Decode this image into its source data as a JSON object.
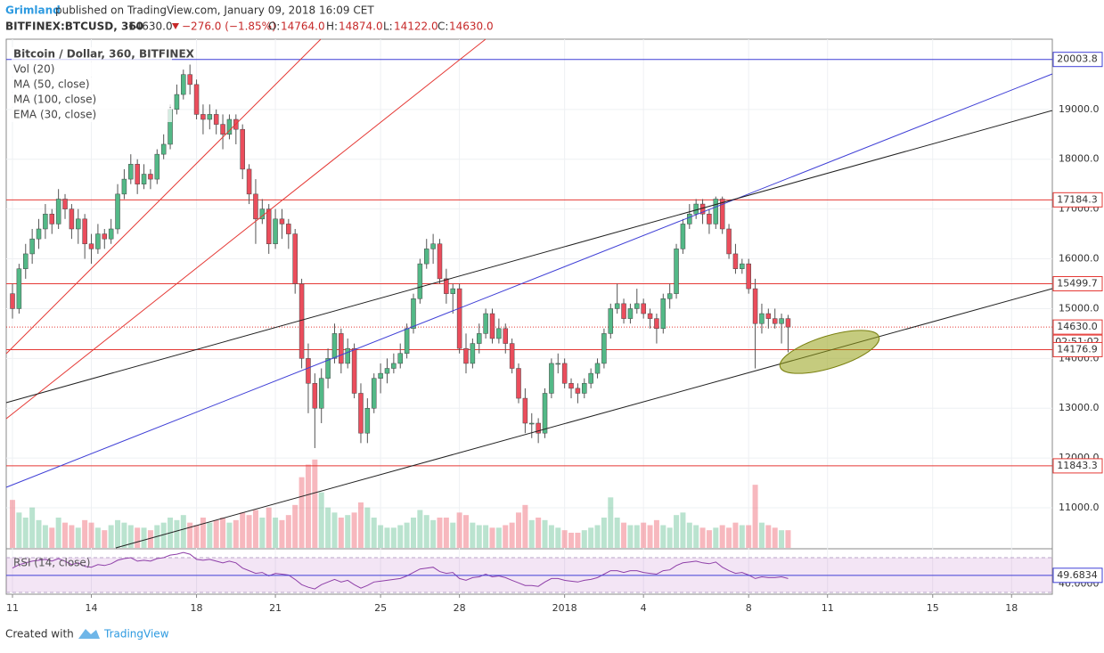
{
  "header": {
    "author": "Grimland",
    "published": "published on TradingView.com, January 09, 2018 16:09 CET",
    "symbol": "BITFINEX:BTCUSD, 360",
    "last": "14630.0",
    "change": "−276.0 (−1.85%)",
    "o_label": "O:",
    "o": "14764.0",
    "h_label": "H:",
    "h": "14874.0",
    "l_label": "L:",
    "l": "14122.0",
    "c_label": "C:",
    "c": "14630.0"
  },
  "legend": [
    "Bitcoin / Dollar, 360, BITFINEX",
    "Vol (20)",
    "MA (50, close)",
    "MA (100, close)",
    "EMA (30, close)"
  ],
  "footer": {
    "created": "Created with",
    "brand": "TradingView"
  },
  "chart_data": {
    "type": "candlestick",
    "up_color": "#53b987",
    "down_color": "#eb4d5c",
    "ylim": [
      10196,
      20410
    ],
    "yticks": [
      {
        "value": 11000,
        "label": "11000.0"
      },
      {
        "value": 12000,
        "label": "12000.0"
      },
      {
        "value": 13000,
        "label": "13000.0"
      },
      {
        "value": 14000,
        "label": "14000.0"
      },
      {
        "value": 15000,
        "label": "15000.0"
      },
      {
        "value": 16000,
        "label": "16000.0"
      },
      {
        "value": 17000,
        "label": "17000.0"
      },
      {
        "value": 18000,
        "label": "18000.0"
      },
      {
        "value": 19000,
        "label": "19000.0"
      }
    ],
    "xlim": [
      -0.95,
      158.2
    ],
    "xticks": [
      {
        "value": 0,
        "label": "11"
      },
      {
        "value": 12,
        "label": "14"
      },
      {
        "value": 28,
        "label": "18"
      },
      {
        "value": 40,
        "label": "21"
      },
      {
        "value": 56,
        "label": "25"
      },
      {
        "value": 68,
        "label": "28"
      },
      {
        "value": 84,
        "label": "2018"
      },
      {
        "value": 96,
        "label": "4"
      },
      {
        "value": 112,
        "label": "8"
      },
      {
        "value": 124,
        "label": "11"
      },
      {
        "value": 140,
        "label": "15"
      },
      {
        "value": 152,
        "label": "18"
      }
    ],
    "grid": true,
    "levels": [
      {
        "value": 20003.8,
        "color": "#3f3fd6"
      },
      {
        "value": 17184.3,
        "color": "#e53935"
      },
      {
        "value": 15499.7,
        "color": "#e53935"
      },
      {
        "value": 14630.0,
        "label": "14630.0",
        "color": "#e53935",
        "dotted": true,
        "countdown": "02:51:02"
      },
      {
        "value": 14176.9,
        "color": "#e53935"
      },
      {
        "value": 11843.3,
        "color": "#e53935"
      }
    ],
    "candles": [
      [
        15300,
        15500,
        14800,
        15000
      ],
      [
        15000,
        15900,
        14900,
        15800
      ],
      [
        15800,
        16300,
        15600,
        16100
      ],
      [
        16100,
        16600,
        15900,
        16400
      ],
      [
        16400,
        16800,
        16200,
        16600
      ],
      [
        16600,
        17100,
        16400,
        16900
      ],
      [
        16900,
        17000,
        16500,
        16700
      ],
      [
        16700,
        17400,
        16600,
        17200
      ],
      [
        17200,
        17300,
        16800,
        17000
      ],
      [
        17000,
        17100,
        16400,
        16600
      ],
      [
        16600,
        17000,
        16300,
        16800
      ],
      [
        16800,
        16900,
        16000,
        16300
      ],
      [
        16300,
        16500,
        15900,
        16200
      ],
      [
        16200,
        16700,
        16100,
        16500
      ],
      [
        16500,
        16600,
        16200,
        16400
      ],
      [
        16400,
        16800,
        16300,
        16600
      ],
      [
        16600,
        17500,
        16500,
        17300
      ],
      [
        17300,
        17800,
        17200,
        17600
      ],
      [
        17600,
        18100,
        17500,
        17900
      ],
      [
        17900,
        18000,
        17300,
        17500
      ],
      [
        17500,
        17900,
        17400,
        17700
      ],
      [
        17700,
        17800,
        17400,
        17600
      ],
      [
        17600,
        18200,
        17500,
        18100
      ],
      [
        18100,
        18500,
        18000,
        18300
      ],
      [
        18300,
        19100,
        18200,
        19000
      ],
      [
        19000,
        19500,
        18900,
        19300
      ],
      [
        19300,
        19800,
        19200,
        19700
      ],
      [
        19700,
        19900,
        19300,
        19500
      ],
      [
        19500,
        19600,
        18800,
        18900
      ],
      [
        18900,
        19100,
        18500,
        18800
      ],
      [
        18800,
        19100,
        18600,
        18900
      ],
      [
        18900,
        19000,
        18500,
        18700
      ],
      [
        18700,
        18900,
        18200,
        18500
      ],
      [
        18500,
        18900,
        18400,
        18800
      ],
      [
        18800,
        18900,
        18300,
        18600
      ],
      [
        18600,
        18700,
        17600,
        17800
      ],
      [
        17800,
        17900,
        17100,
        17300
      ],
      [
        17300,
        17600,
        16300,
        16800
      ],
      [
        16800,
        17200,
        16700,
        17000
      ],
      [
        17000,
        17100,
        16100,
        16300
      ],
      [
        16300,
        17000,
        16200,
        16800
      ],
      [
        16800,
        17000,
        16400,
        16700
      ],
      [
        16700,
        16800,
        16200,
        16500
      ],
      [
        16500,
        16600,
        15300,
        15500
      ],
      [
        15500,
        15600,
        13800,
        14000
      ],
      [
        14000,
        14300,
        12900,
        13500
      ],
      [
        13500,
        13700,
        12200,
        13000
      ],
      [
        13000,
        13800,
        12700,
        13600
      ],
      [
        13600,
        14200,
        13400,
        14000
      ],
      [
        14000,
        14700,
        13900,
        14500
      ],
      [
        14500,
        14600,
        13700,
        13900
      ],
      [
        13900,
        14400,
        13800,
        14200
      ],
      [
        14200,
        14300,
        13200,
        13300
      ],
      [
        13300,
        13500,
        12300,
        12500
      ],
      [
        12500,
        13200,
        12300,
        13000
      ],
      [
        13000,
        13700,
        12900,
        13600
      ],
      [
        13600,
        13900,
        13300,
        13700
      ],
      [
        13700,
        14000,
        13500,
        13800
      ],
      [
        13800,
        14100,
        13700,
        13900
      ],
      [
        13900,
        14300,
        13800,
        14100
      ],
      [
        14100,
        14700,
        14000,
        14600
      ],
      [
        14600,
        15300,
        14500,
        15200
      ],
      [
        15200,
        16000,
        15100,
        15900
      ],
      [
        15900,
        16400,
        15800,
        16200
      ],
      [
        16200,
        16500,
        15900,
        16300
      ],
      [
        16300,
        16400,
        15500,
        15600
      ],
      [
        15600,
        15800,
        15100,
        15300
      ],
      [
        15300,
        15500,
        14900,
        15400
      ],
      [
        15400,
        15500,
        14100,
        14200
      ],
      [
        14200,
        14500,
        13700,
        13900
      ],
      [
        13900,
        14400,
        13800,
        14300
      ],
      [
        14300,
        14700,
        14100,
        14500
      ],
      [
        14500,
        15000,
        14400,
        14900
      ],
      [
        14900,
        15000,
        14300,
        14400
      ],
      [
        14400,
        14800,
        14300,
        14600
      ],
      [
        14600,
        14700,
        14100,
        14300
      ],
      [
        14300,
        14400,
        13700,
        13800
      ],
      [
        13800,
        13900,
        13100,
        13200
      ],
      [
        13200,
        13400,
        12500,
        12700
      ],
      [
        12700,
        12900,
        12400,
        12700
      ],
      [
        12700,
        12800,
        12300,
        12500
      ],
      [
        12500,
        13400,
        12400,
        13300
      ],
      [
        13300,
        14000,
        13200,
        13900
      ],
      [
        13900,
        14100,
        13700,
        13900
      ],
      [
        13900,
        14000,
        13400,
        13500
      ],
      [
        13500,
        13600,
        13200,
        13400
      ],
      [
        13400,
        13500,
        13100,
        13300
      ],
      [
        13300,
        13600,
        13200,
        13500
      ],
      [
        13500,
        13800,
        13400,
        13700
      ],
      [
        13700,
        14000,
        13600,
        13900
      ],
      [
        13900,
        14600,
        13800,
        14500
      ],
      [
        14500,
        15100,
        14400,
        15000
      ],
      [
        15000,
        15500,
        14900,
        15100
      ],
      [
        15100,
        15200,
        14700,
        14800
      ],
      [
        14800,
        15100,
        14700,
        15000
      ],
      [
        15000,
        15400,
        14900,
        15100
      ],
      [
        15100,
        15200,
        14800,
        14900
      ],
      [
        14900,
        15000,
        14600,
        14800
      ],
      [
        14800,
        14900,
        14300,
        14600
      ],
      [
        14600,
        15300,
        14500,
        15200
      ],
      [
        15200,
        15500,
        15000,
        15300
      ],
      [
        15300,
        16300,
        15200,
        16200
      ],
      [
        16200,
        16800,
        16100,
        16700
      ],
      [
        16700,
        17100,
        16600,
        16900
      ],
      [
        16900,
        17200,
        16800,
        17100
      ],
      [
        17100,
        17200,
        16700,
        16900
      ],
      [
        16900,
        17000,
        16500,
        16700
      ],
      [
        16700,
        17250,
        16600,
        17200
      ],
      [
        17200,
        17250,
        16500,
        16600
      ],
      [
        16600,
        16700,
        16000,
        16100
      ],
      [
        16100,
        16300,
        15700,
        15800
      ],
      [
        15800,
        16000,
        15700,
        15900
      ],
      [
        15900,
        16000,
        15300,
        15400
      ],
      [
        15400,
        15600,
        13800,
        14700
      ],
      [
        14700,
        15100,
        14500,
        14900
      ],
      [
        14900,
        15000,
        14600,
        14800
      ],
      [
        14800,
        15000,
        14600,
        14700
      ],
      [
        14700,
        14900,
        14300,
        14800
      ],
      [
        14800,
        14874,
        14122,
        14630
      ]
    ],
    "volume_lim": [
      0,
      60000
    ],
    "volume": [
      19000,
      14000,
      12000,
      16000,
      11000,
      9000,
      8000,
      12000,
      10000,
      9000,
      8000,
      11000,
      10000,
      8000,
      7000,
      9000,
      11000,
      10000,
      9000,
      8000,
      8000,
      7000,
      9000,
      10000,
      12000,
      11000,
      13000,
      10000,
      9000,
      12000,
      10000,
      11000,
      12000,
      10000,
      11000,
      14000,
      13000,
      15000,
      12000,
      16000,
      12000,
      11000,
      13000,
      17000,
      28000,
      33000,
      35000,
      22000,
      16000,
      14000,
      12000,
      13000,
      14000,
      18000,
      16000,
      12000,
      9000,
      8000,
      8000,
      9000,
      10000,
      12000,
      15000,
      13000,
      11000,
      12000,
      12000,
      10000,
      14000,
      13000,
      10000,
      9000,
      9000,
      8000,
      8000,
      9000,
      10000,
      14000,
      17000,
      11000,
      12000,
      11000,
      9000,
      8000,
      7000,
      6000,
      6000,
      7000,
      8000,
      9000,
      12000,
      20000,
      12000,
      10000,
      9000,
      9000,
      10000,
      9000,
      11000,
      9000,
      8000,
      13000,
      14000,
      10000,
      9000,
      8000,
      7000,
      8000,
      9000,
      8000,
      10000,
      9000,
      9000,
      25000,
      10000,
      9000,
      8000,
      7000,
      7000
    ],
    "rsi_label": "RSI (14, close)",
    "rsi_lim": [
      28,
      79.2
    ],
    "rsi_bands": [
      70,
      30
    ],
    "rsi_ticks": [
      {
        "value": 40,
        "label": "40.0000"
      }
    ],
    "rsi_last": {
      "value": 49.6834,
      "label": "49.6834"
    },
    "rsi": [
      58,
      62,
      64,
      66,
      67,
      68,
      66,
      69,
      66,
      62,
      64,
      60,
      59,
      62,
      61,
      63,
      67,
      69,
      70,
      66,
      67,
      66,
      69,
      70,
      73,
      74,
      76,
      74,
      68,
      67,
      68,
      66,
      64,
      66,
      64,
      58,
      55,
      52,
      53,
      49,
      52,
      51,
      50,
      45,
      39,
      36,
      34,
      39,
      42,
      45,
      42,
      44,
      39,
      35,
      38,
      42,
      43,
      44,
      45,
      46,
      49,
      53,
      57,
      58,
      59,
      54,
      52,
      53,
      46,
      44,
      47,
      48,
      51,
      48,
      49,
      47,
      44,
      41,
      38,
      38,
      37,
      42,
      46,
      46,
      44,
      43,
      42,
      44,
      45,
      47,
      51,
      55,
      55,
      53,
      55,
      55,
      53,
      52,
      51,
      55,
      56,
      61,
      64,
      65,
      66,
      64,
      63,
      65,
      59,
      55,
      52,
      53,
      50,
      46,
      48,
      47,
      47,
      48,
      46
    ]
  }
}
